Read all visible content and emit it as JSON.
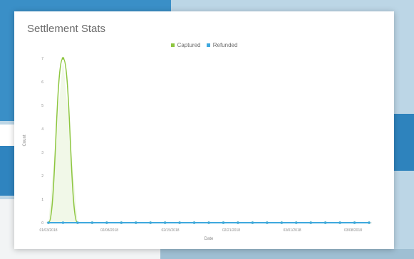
{
  "card": {
    "title": "Settlement Stats"
  },
  "chart_data": {
    "type": "line",
    "title": "Settlement Stats",
    "xlabel": "Date",
    "ylabel": "Count",
    "ylim": [
      0,
      7
    ],
    "yticks": [
      "0",
      "1",
      "2",
      "3",
      "4",
      "5",
      "6",
      "7"
    ],
    "xtick_labels": [
      "01/03/2018",
      "02/08/2018",
      "02/15/2018",
      "02/21/2018",
      "03/01/2018",
      "03/08/2018"
    ],
    "x": [
      1,
      2,
      3,
      4,
      5,
      6,
      7,
      8,
      9,
      10,
      11,
      12,
      13,
      14,
      15,
      16,
      17,
      18,
      19,
      20,
      21,
      22,
      23
    ],
    "series": [
      {
        "name": "Captured",
        "color": "#8dc63f",
        "values": [
          0,
          7,
          0,
          0,
          0,
          0,
          0,
          0,
          0,
          0,
          0,
          0,
          0,
          0,
          0,
          0,
          0,
          0,
          0,
          0,
          0,
          0,
          0
        ]
      },
      {
        "name": "Refunded",
        "color": "#3ea8de",
        "values": [
          0,
          0,
          0,
          0,
          0,
          0,
          0,
          0,
          0,
          0,
          0,
          0,
          0,
          0,
          0,
          0,
          0,
          0,
          0,
          0,
          0,
          0,
          0
        ]
      }
    ],
    "grid": false,
    "legend_position": "top-center"
  }
}
